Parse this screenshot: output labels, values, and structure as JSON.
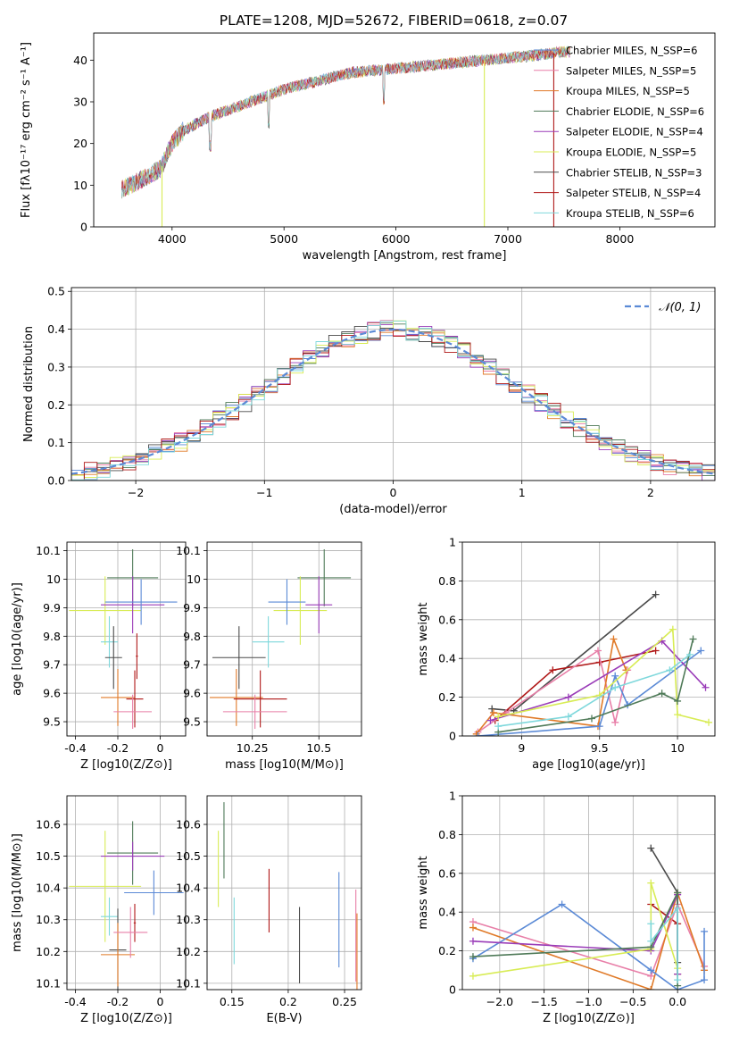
{
  "figure_title": "PLATE=1208, MJD=52672, FIBERID=0618, z=0.07",
  "colors": {
    "chabrier_miles": "#5b8ad6",
    "salpeter_miles": "#e87fa8",
    "kroupa_miles": "#e07a28",
    "chabrier_elodie": "#4f7a58",
    "salpeter_elodie": "#9a3cb8",
    "kroupa_elodie": "#d8ec55",
    "chabrier_stelib": "#4a4a4a",
    "salpeter_stelib": "#b01818",
    "kroupa_stelib": "#7fd8dc",
    "normal": "#5b8ad6",
    "grid": "#b0b0b0"
  },
  "chart_data": [
    {
      "id": "spectrum",
      "type": "line",
      "title": "PLATE=1208, MJD=52672, FIBERID=0618, z=0.07",
      "xlabel": "wavelength [Angstrom, rest frame]",
      "ylabel": "Flux [fλ10⁻¹⁷ erg cm⁻² s⁻¹ A⁻¹]",
      "xlim": [
        3300,
        8850
      ],
      "ylim": [
        0,
        46.5
      ],
      "xticks": [
        4000,
        5000,
        6000,
        7000,
        8000
      ],
      "yticks": [
        0,
        10,
        20,
        30,
        40
      ],
      "grid": false,
      "legend_position": "right",
      "continuum_x": [
        3550,
        3700,
        3900,
        4000,
        4100,
        4300,
        4500,
        4800,
        5000,
        5300,
        5600,
        6000,
        6400,
        6800,
        7200,
        7500
      ],
      "continuum_y": [
        9,
        11,
        14,
        20,
        23,
        26,
        28,
        31,
        33,
        35,
        37,
        38,
        39,
        40,
        41,
        42
      ],
      "spikes": [
        {
          "x": 3910,
          "y": 0
        },
        {
          "x": 6790,
          "y": 0
        },
        {
          "x": 7410,
          "y": 0
        }
      ],
      "series": [
        {
          "name": "Chabrier MILES, N_SSP=6",
          "key": "chabrier_miles"
        },
        {
          "name": "Salpeter MILES, N_SSP=5",
          "key": "salpeter_miles"
        },
        {
          "name": "Kroupa MILES, N_SSP=5",
          "key": "kroupa_miles"
        },
        {
          "name": "Chabrier ELODIE, N_SSP=6",
          "key": "chabrier_elodie"
        },
        {
          "name": "Salpeter ELODIE, N_SSP=4",
          "key": "salpeter_elodie"
        },
        {
          "name": "Kroupa ELODIE, N_SSP=5",
          "key": "kroupa_elodie"
        },
        {
          "name": "Chabrier STELIB, N_SSP=3",
          "key": "chabrier_stelib"
        },
        {
          "name": "Salpeter STELIB, N_SSP=4",
          "key": "salpeter_stelib"
        },
        {
          "name": "Kroupa STELIB, N_SSP=6",
          "key": "kroupa_stelib"
        }
      ]
    },
    {
      "id": "residuals",
      "type": "line",
      "xlabel": "(data-model)/error",
      "ylabel": "Normed distribution",
      "xlim": [
        -2.5,
        2.5
      ],
      "ylim": [
        0,
        0.51
      ],
      "xticks": [
        -2,
        -1,
        0,
        1,
        2
      ],
      "xticklabels": [
        "−2",
        "−1",
        "0",
        "1",
        "2"
      ],
      "yticks": [
        0.0,
        0.1,
        0.2,
        0.3,
        0.4,
        0.5
      ],
      "yticklabels": [
        "0.0",
        "0.1",
        "0.2",
        "0.3",
        "0.4",
        "0.5"
      ],
      "grid": true,
      "legend_position": "top-right",
      "normal_label": "𝒩(0, 1)",
      "bin_width": 0.1
    },
    {
      "id": "age_vs_Z",
      "type": "scatter",
      "xlabel": "Z [log10(Z/Z⊙)]",
      "ylabel": "age  [log10(age/yr)]",
      "xlim": [
        -0.44,
        0.12
      ],
      "ylim": [
        9.45,
        10.13
      ],
      "xticks": [
        -0.4,
        -0.2,
        0.0
      ],
      "yticks": [
        9.5,
        9.6,
        9.7,
        9.8,
        9.9,
        10.0,
        10.1
      ],
      "grid": true,
      "points": [
        {
          "key": "chabrier_elodie",
          "x": -0.13,
          "y": 10.005,
          "xerr": 0.12,
          "yerr": 0.1
        },
        {
          "key": "kroupa_elodie",
          "x": -0.26,
          "y": 9.89,
          "xerr": 0.17,
          "yerr": 0.12
        },
        {
          "key": "salpeter_elodie",
          "x": -0.13,
          "y": 9.91,
          "xerr": 0.15,
          "yerr": 0.1
        },
        {
          "key": "chabrier_miles",
          "x": -0.09,
          "y": 9.92,
          "xerr": 0.17,
          "yerr": 0.08
        },
        {
          "key": "kroupa_stelib",
          "x": -0.24,
          "y": 9.78,
          "xerr": 0.04,
          "yerr": 0.09
        },
        {
          "key": "chabrier_stelib",
          "x": -0.22,
          "y": 9.725,
          "xerr": 0.04,
          "yerr": 0.11
        },
        {
          "key": "kroupa_miles",
          "x": -0.2,
          "y": 9.585,
          "xerr": 0.08,
          "yerr": 0.1
        },
        {
          "key": "salpeter_stelib",
          "x": -0.12,
          "y": 9.58,
          "xerr": 0.04,
          "yerr": 0.1
        },
        {
          "key": "salpeter_miles",
          "x": -0.13,
          "y": 9.535,
          "xerr": 0.09,
          "yerr": 0.06
        },
        {
          "key": "salpeter_stelib",
          "x": -0.11,
          "y": 9.73,
          "xerr": 0.005,
          "yerr": 0.08
        }
      ]
    },
    {
      "id": "age_vs_mass",
      "type": "scatter",
      "xlabel": "mass [log10(M/M⊙)]",
      "ylabel": "",
      "xlim": [
        10.08,
        10.66
      ],
      "ylim": [
        9.45,
        10.13
      ],
      "xticks": [
        10.25,
        10.5
      ],
      "yticks": [
        9.5,
        9.6,
        9.7,
        9.8,
        9.9,
        10.0,
        10.1
      ],
      "grid": true,
      "points": [
        {
          "key": "chabrier_elodie",
          "x": 10.52,
          "y": 10.005,
          "xerr": 0.1,
          "yerr": 0.1
        },
        {
          "key": "kroupa_elodie",
          "x": 10.43,
          "y": 9.89,
          "xerr": 0.1,
          "yerr": 0.12
        },
        {
          "key": "salpeter_elodie",
          "x": 10.5,
          "y": 9.91,
          "xerr": 0.05,
          "yerr": 0.1
        },
        {
          "key": "chabrier_miles",
          "x": 10.38,
          "y": 9.92,
          "xerr": 0.07,
          "yerr": 0.08
        },
        {
          "key": "kroupa_stelib",
          "x": 10.31,
          "y": 9.78,
          "xerr": 0.06,
          "yerr": 0.09
        },
        {
          "key": "chabrier_stelib",
          "x": 10.2,
          "y": 9.725,
          "xerr": 0.1,
          "yerr": 0.11
        },
        {
          "key": "kroupa_miles",
          "x": 10.19,
          "y": 9.585,
          "xerr": 0.1,
          "yerr": 0.1
        },
        {
          "key": "salpeter_stelib",
          "x": 10.28,
          "y": 9.58,
          "xerr": 0.1,
          "yerr": 0.1
        },
        {
          "key": "salpeter_miles",
          "x": 10.26,
          "y": 9.535,
          "xerr": 0.12,
          "yerr": 0.06
        }
      ]
    },
    {
      "id": "weight_vs_age",
      "type": "line",
      "xlabel": "age  [log10(age/yr)]",
      "ylabel": "mass weight",
      "xlim": [
        8.62,
        10.24
      ],
      "ylim": [
        0.0,
        1.0
      ],
      "xticks": [
        9.0,
        9.5,
        10.0
      ],
      "yticks": [
        0.0,
        0.2,
        0.4,
        0.6,
        0.8,
        1.0
      ],
      "grid": true,
      "series": [
        {
          "key": "chabrier_stelib",
          "x": [
            8.81,
            8.95,
            9.86
          ],
          "y": [
            0.14,
            0.13,
            0.73
          ]
        },
        {
          "key": "salpeter_stelib",
          "x": [
            8.83,
            9.2,
            9.5,
            9.86
          ],
          "y": [
            0.08,
            0.34,
            0.38,
            0.44
          ]
        },
        {
          "key": "salpeter_miles",
          "x": [
            8.72,
            8.9,
            9.49,
            9.6,
            9.68
          ],
          "y": [
            0.02,
            0.12,
            0.44,
            0.07,
            0.34
          ]
        },
        {
          "key": "kroupa_miles",
          "x": [
            8.71,
            8.82,
            9.49,
            9.59,
            9.67
          ],
          "y": [
            0.01,
            0.12,
            0.05,
            0.5,
            0.34
          ]
        },
        {
          "key": "chabrier_miles",
          "x": [
            8.72,
            9.5,
            9.6,
            9.68,
            10.15
          ],
          "y": [
            0.0,
            0.05,
            0.31,
            0.16,
            0.44
          ]
        },
        {
          "key": "salpeter_elodie",
          "x": [
            8.8,
            9.3,
            9.9,
            10.18
          ],
          "y": [
            0.08,
            0.2,
            0.49,
            0.25
          ]
        },
        {
          "key": "kroupa_elodie",
          "x": [
            8.85,
            9.5,
            9.97,
            10.0,
            10.2
          ],
          "y": [
            0.1,
            0.21,
            0.55,
            0.11,
            0.07
          ]
        },
        {
          "key": "chabrier_elodie",
          "x": [
            8.85,
            9.45,
            9.9,
            10.0,
            10.1
          ],
          "y": [
            0.02,
            0.09,
            0.22,
            0.18,
            0.5
          ]
        },
        {
          "key": "kroupa_stelib",
          "x": [
            8.85,
            9.3,
            9.6,
            9.95,
            10.08
          ],
          "y": [
            0.05,
            0.1,
            0.25,
            0.34,
            0.42
          ]
        }
      ]
    },
    {
      "id": "mass_vs_Z",
      "type": "scatter",
      "xlabel": "Z [log10(Z/Z⊙)]",
      "ylabel": "mass [log10(M/M⊙)]",
      "xlim": [
        -0.44,
        0.12
      ],
      "ylim": [
        10.08,
        10.69
      ],
      "xticks": [
        -0.4,
        -0.2,
        0.0
      ],
      "yticks": [
        10.1,
        10.2,
        10.3,
        10.4,
        10.5,
        10.6
      ],
      "grid": true,
      "points": [
        {
          "key": "chabrier_elodie",
          "x": -0.13,
          "y": 10.51,
          "xerr": 0.12,
          "yerr": 0.1
        },
        {
          "key": "kroupa_elodie",
          "x": -0.26,
          "y": 10.405,
          "xerr": 0.17,
          "yerr": 0.175
        },
        {
          "key": "salpeter_elodie",
          "x": -0.13,
          "y": 10.5,
          "xerr": 0.15,
          "yerr": 0.045
        },
        {
          "key": "chabrier_miles",
          "x": -0.03,
          "y": 10.385,
          "xerr": 0.14,
          "yerr": 0.07
        },
        {
          "key": "kroupa_stelib",
          "x": -0.24,
          "y": 10.31,
          "xerr": 0.04,
          "yerr": 0.06
        },
        {
          "key": "chabrier_stelib",
          "x": -0.2,
          "y": 10.205,
          "xerr": 0.04,
          "yerr": 0.13
        },
        {
          "key": "kroupa_miles",
          "x": -0.2,
          "y": 10.19,
          "xerr": 0.08,
          "yerr": 0.1
        },
        {
          "key": "salpeter_stelib",
          "x": -0.12,
          "y": 10.29,
          "xerr": 0.005,
          "yerr": 0.06
        },
        {
          "key": "salpeter_miles",
          "x": -0.14,
          "y": 10.26,
          "xerr": 0.08,
          "yerr": 0.08
        }
      ]
    },
    {
      "id": "mass_vs_ebv",
      "type": "scatter",
      "xlabel": "E(B-V)",
      "ylabel": "",
      "xlim": [
        0.128,
        0.265
      ],
      "ylim": [
        10.08,
        10.69
      ],
      "xticks": [
        0.15,
        0.2,
        0.25
      ],
      "yticks": [
        10.1,
        10.2,
        10.3,
        10.4,
        10.5,
        10.6
      ],
      "grid": true,
      "points": [
        {
          "key": "kroupa_elodie",
          "x": 0.138,
          "y": 10.46,
          "yerr": 0.12
        },
        {
          "key": "chabrier_elodie",
          "x": 0.143,
          "y": 10.55,
          "yerr": 0.12
        },
        {
          "key": "kroupa_stelib",
          "x": 0.152,
          "y": 10.265,
          "yerr": 0.105
        },
        {
          "key": "salpeter_stelib",
          "x": 0.183,
          "y": 10.36,
          "yerr": 0.1
        },
        {
          "key": "chabrier_stelib",
          "x": 0.21,
          "y": 10.22,
          "yerr": 0.12
        },
        {
          "key": "chabrier_miles",
          "x": 0.245,
          "y": 10.3,
          "yerr": 0.15
        },
        {
          "key": "salpeter_miles",
          "x": 0.26,
          "y": 10.25,
          "yerr": 0.145
        },
        {
          "key": "kroupa_miles",
          "x": 0.261,
          "y": 10.2,
          "yerr": 0.12
        }
      ]
    },
    {
      "id": "weight_vs_Z",
      "type": "line",
      "xlabel": "Z [log10(Z/Z⊙)]",
      "ylabel": "mass weight",
      "xlim": [
        -2.42,
        0.42
      ],
      "ylim": [
        0.0,
        1.0
      ],
      "xticks": [
        -2.0,
        -1.5,
        -1.0,
        -0.5,
        0.0
      ],
      "xticklabels": [
        "−2.0",
        "−1.5",
        "−1.0",
        "−0.5",
        "0.0"
      ],
      "yticks": [
        0.0,
        0.2,
        0.4,
        0.6,
        0.8,
        1.0
      ],
      "grid": true,
      "series": [
        {
          "key": "chabrier_stelib",
          "x": [
            -0.3,
            0.0,
            0.0
          ],
          "y": [
            0.73,
            0.5,
            0.14
          ]
        },
        {
          "key": "salpeter_stelib",
          "x": [
            -0.3,
            0.0,
            0.0
          ],
          "y": [
            0.44,
            0.34,
            0.08
          ]
        },
        {
          "key": "salpeter_miles",
          "x": [
            -2.3,
            -0.3,
            0.0,
            0.3
          ],
          "y": [
            0.35,
            0.07,
            0.44,
            0.12
          ]
        },
        {
          "key": "kroupa_miles",
          "x": [
            -2.3,
            -0.3,
            0.0,
            0.3
          ],
          "y": [
            0.32,
            0.0,
            0.5,
            0.1
          ]
        },
        {
          "key": "chabrier_miles",
          "x": [
            -2.3,
            -1.3,
            -0.3,
            0.0,
            0.3,
            0.3
          ],
          "y": [
            0.16,
            0.44,
            0.1,
            0.0,
            0.05,
            0.3
          ]
        },
        {
          "key": "salpeter_elodie",
          "x": [
            -2.3,
            -0.3,
            0.0,
            0.0
          ],
          "y": [
            0.25,
            0.2,
            0.49,
            0.08
          ]
        },
        {
          "key": "kroupa_elodie",
          "x": [
            -2.3,
            -0.3,
            -0.3,
            0.0
          ],
          "y": [
            0.07,
            0.21,
            0.55,
            0.11
          ]
        },
        {
          "key": "chabrier_elodie",
          "x": [
            -2.3,
            -0.3,
            0.0,
            0.0
          ],
          "y": [
            0.17,
            0.22,
            0.5,
            0.02
          ]
        },
        {
          "key": "kroupa_stelib",
          "x": [
            -0.3,
            -0.3,
            0.0,
            0.0
          ],
          "y": [
            0.34,
            0.25,
            0.42,
            0.05
          ]
        }
      ]
    }
  ]
}
